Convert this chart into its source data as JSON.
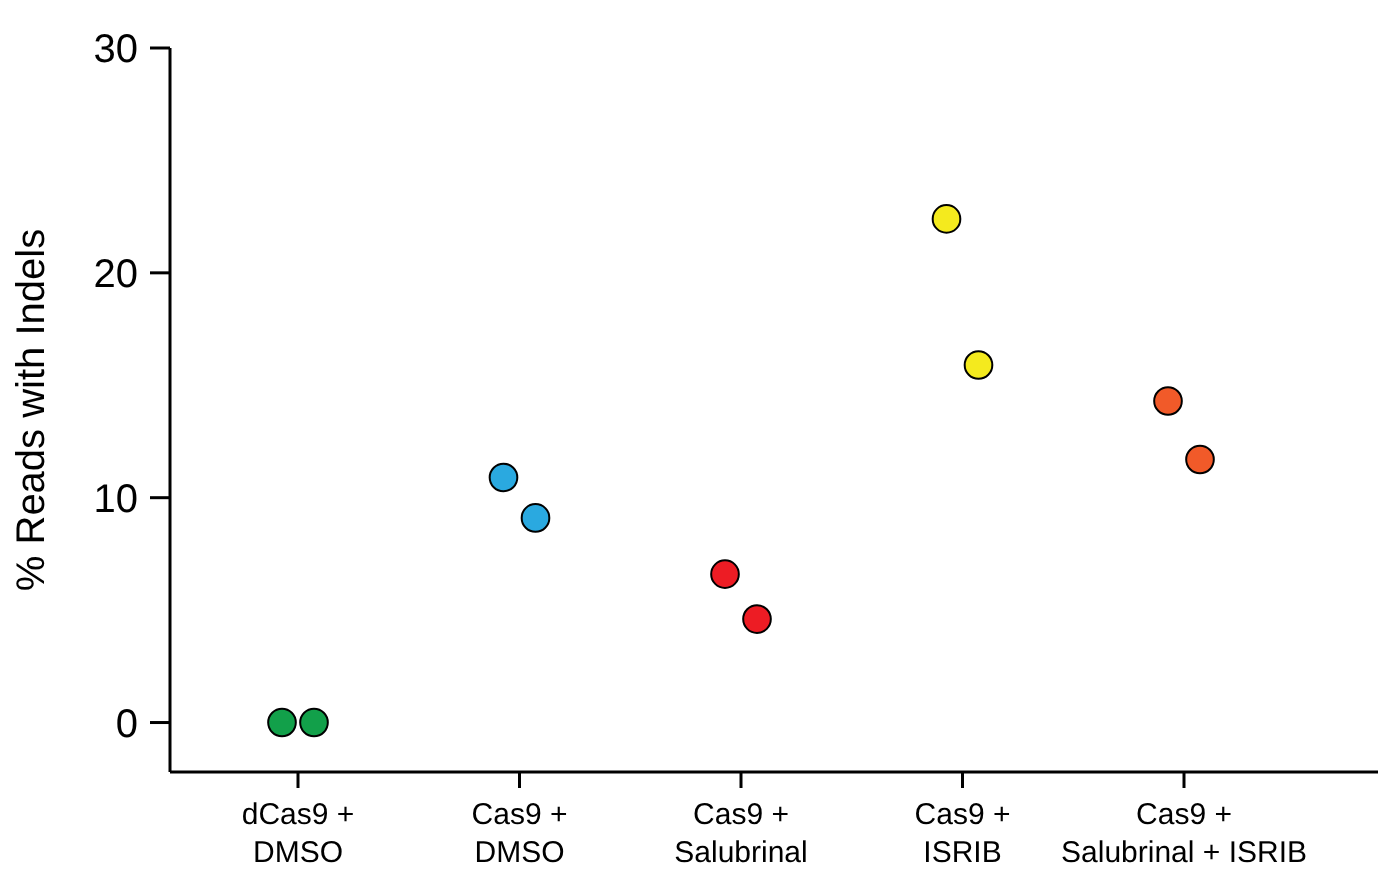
{
  "chart_data": {
    "type": "scatter",
    "ylabel": "% Reads with Indels",
    "categories": [
      "dCas9 + DMSO",
      "Cas9 + DMSO",
      "Cas9 + Salubrinal",
      "Cas9 + ISRIB",
      "Cas9 + Salubrinal + ISRIB"
    ],
    "series": [
      {
        "color": "#12a04a",
        "x": [
          "dCas9 + DMSO",
          "dCas9 + DMSO"
        ],
        "values": [
          0,
          0
        ]
      },
      {
        "color": "#2aa9e0",
        "x": [
          "Cas9 + DMSO",
          "Cas9 + DMSO"
        ],
        "values": [
          10.9,
          9.1
        ]
      },
      {
        "color": "#ed1c24",
        "x": [
          "Cas9 + Salubrinal",
          "Cas9 + Salubrinal"
        ],
        "values": [
          6.6,
          4.6
        ]
      },
      {
        "color": "#f4ea1e",
        "x": [
          "Cas9 + ISRIB",
          "Cas9 + ISRIB"
        ],
        "values": [
          22.4,
          15.9
        ]
      },
      {
        "color": "#f15a29",
        "x": [
          "Cas9 + Salubrinal + ISRIB",
          "Cas9 + Salubrinal + ISRIB"
        ],
        "values": [
          14.3,
          11.7
        ]
      }
    ],
    "ylim": [
      -2.2,
      30
    ],
    "yticks": [
      0,
      10,
      20,
      30
    ],
    "marker": "circle",
    "grid": false
  }
}
